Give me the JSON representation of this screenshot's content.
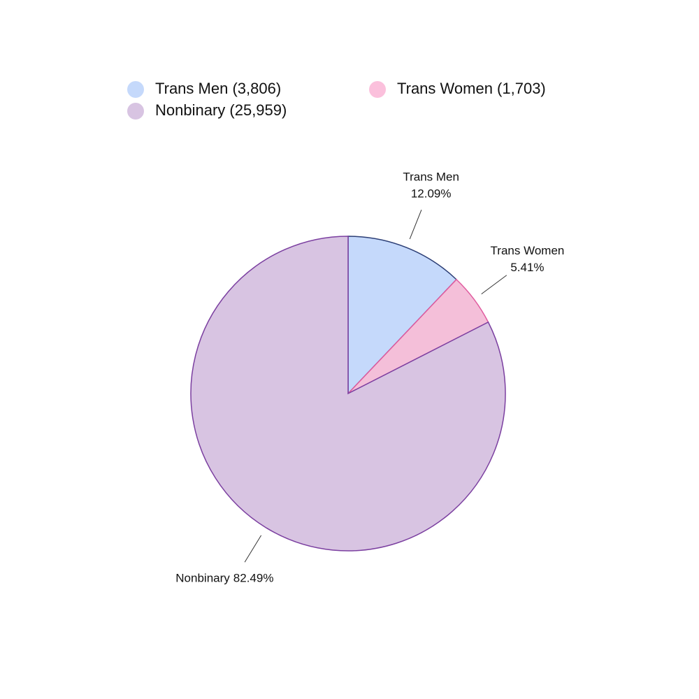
{
  "chart_data": {
    "type": "pie",
    "categories": [
      "Trans Men",
      "Trans Women",
      "Nonbinary"
    ],
    "values": [
      12.09,
      5.41,
      82.49
    ],
    "value_labels": [
      "12.09%",
      "5.41%",
      "82.49%"
    ],
    "counts": [
      3806,
      1703,
      25959
    ],
    "legend_labels": [
      "Trans Men (3,806)",
      "Trans Women (1,703)",
      "Nonbinary (25,959)"
    ],
    "colors": [
      "#c5d9fb",
      "#f4bfd9",
      "#d8c4e2"
    ],
    "edge_colors": [
      "#2c3e75",
      "#e05a9e",
      "#7b3fa0"
    ],
    "legend_colors": [
      "#c5d9fb",
      "#fbc0dc",
      "#d8c4e2"
    ]
  }
}
